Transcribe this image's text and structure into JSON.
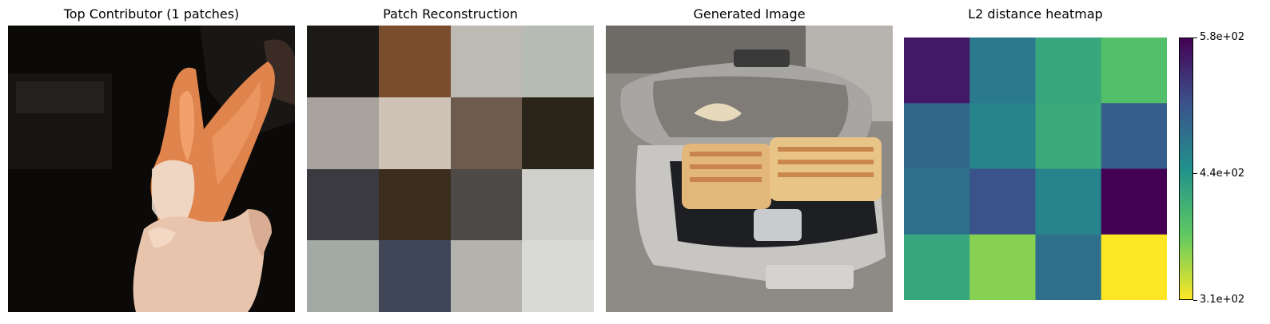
{
  "panels": {
    "top_contributor_title": "Top Contributor (1 patches)",
    "reconstruction_title": "Patch Reconstruction",
    "generated_title": "Generated Image",
    "heatmap_title": "L2 distance heatmap"
  },
  "patch_colors": [
    "#1c1a17",
    "#7a4e2c",
    "#bdbab3",
    "#b6bcb3",
    "#a7a29b",
    "#cfc3b8",
    "#6d5c4d",
    "#2b2418",
    "#3a3a40",
    "#3b2e1e",
    "#4e4a48",
    "#cfcfcc",
    "#a3a9a4",
    "#3e4657",
    "#b4b2ad",
    "#d9d9d8"
  ],
  "chart_data": {
    "type": "heatmap",
    "title": "L2 distance heatmap",
    "rows": 4,
    "cols": 4,
    "values": [
      [
        560,
        470,
        420,
        390
      ],
      [
        490,
        460,
        415,
        500
      ],
      [
        480,
        510,
        460,
        580
      ],
      [
        420,
        360,
        480,
        310
      ]
    ],
    "colormap": "viridis_r",
    "vmin": 310,
    "vmax": 580,
    "colorbar_ticks": [
      {
        "value": 580,
        "label": "5.8e+02"
      },
      {
        "value": 440,
        "label": "4.4e+02"
      },
      {
        "value": 310,
        "label": "3.1e+02"
      }
    ]
  }
}
